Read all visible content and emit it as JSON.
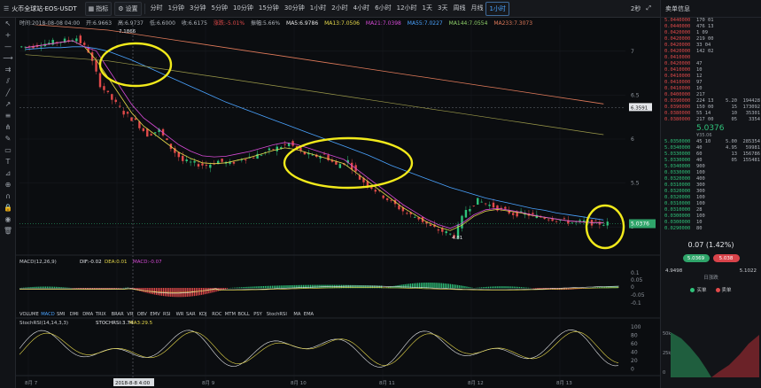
{
  "toolbar": {
    "pair_title": "火币全球站·EOS-USDT",
    "indicators_label": "指标",
    "settings_label": "设置",
    "periods": [
      "分时",
      "1分钟",
      "3分钟",
      "5分钟",
      "10分钟",
      "15分钟",
      "30分钟",
      "1小时",
      "2小时",
      "4小时",
      "6小时",
      "12小时",
      "1天",
      "3天",
      "周线",
      "月线",
      "1小时"
    ],
    "active_period": "1小时",
    "right_label": "2秒"
  },
  "infoline": {
    "time": "时间:2018-08-08 04:00",
    "open": "开:6.9663",
    "high": "高:6.9737",
    "low": "低:6.6000",
    "close": "收:6.6175",
    "change": "涨跌:-5.01%",
    "amplitude": "振幅:5.66%",
    "ma5": "MA5:6.9786",
    "ma13": "MA13:7.0506",
    "ma21": "MA21:7.0398",
    "ma55": "MA55:7.0227",
    "ma144": "MA144:7.0554",
    "ma233": "MA233:7.3073"
  },
  "price_axis": [
    "7",
    "6.5",
    "6",
    "5.5",
    "5"
  ],
  "price_tag_hover": "6.3591",
  "price_tag_current": "5.0376",
  "high_label": "7.1866",
  "low_label": "4.81",
  "macd": {
    "title": "MACD(12,26,9)",
    "dif": "DIF:-0.02",
    "dea": "DEA:0.01",
    "macd": "MACD:-0.07",
    "axis": [
      "0.1",
      "0.05",
      "0",
      "-0.05",
      "-0.1"
    ]
  },
  "indicator_tabs": [
    "VOLUME",
    "MACD",
    "SMI",
    "DMI",
    "DMA",
    "TRIX",
    "BRAR",
    "VR",
    "OBV",
    "EMV",
    "RSI",
    "WR",
    "SAR",
    "KDJ",
    "ROC",
    "MTM",
    "BOLL",
    "PSY",
    "StochRSI",
    "MA",
    "EMA"
  ],
  "stochrsi": {
    "title": "StochRSI(14,14,3,3)",
    "k": "STOCHRSI:3.74",
    "d": "MA3:29.5",
    "axis": [
      "100",
      "80",
      "60",
      "40",
      "20",
      "0"
    ]
  },
  "date_axis": [
    "8月 7",
    "2018-8-8 4:00",
    "8月 9",
    "8月 10",
    "8月 11",
    "8月 12",
    "8月 13"
  ],
  "orderbook": {
    "title": "卖单信息",
    "asks": [
      [
        "5.0440000",
        "170",
        "01",
        "",
        ""
      ],
      [
        "0.0440000",
        "476",
        "13",
        "",
        ""
      ],
      [
        "0.0420000",
        "1",
        "09",
        "",
        ""
      ],
      [
        "0.0420000",
        "219",
        "00",
        "",
        ""
      ],
      [
        "0.0420000",
        "33",
        "04",
        "",
        ""
      ],
      [
        "0.0420000",
        "142",
        "02",
        "",
        ""
      ],
      [
        "0.0410000",
        "",
        "",
        "",
        ""
      ],
      [
        "0.0420000",
        "47",
        "",
        "",
        ""
      ],
      [
        "0.0410000",
        "10",
        "",
        "",
        ""
      ],
      [
        "0.0410000",
        "12",
        "",
        "",
        ""
      ],
      [
        "0.0410000",
        "97",
        "",
        "",
        ""
      ],
      [
        "0.0410000",
        "10",
        "",
        "",
        ""
      ],
      [
        "0.0400000",
        "217",
        "",
        "",
        ""
      ],
      [
        "0.0390000",
        "224",
        "13",
        "5.20",
        "194428"
      ],
      [
        "0.0390000",
        "150",
        "00",
        "15",
        "173092"
      ],
      [
        "0.0380000",
        "55",
        "14",
        "10",
        "35301"
      ],
      [
        "0.0380000",
        "217",
        "00",
        "05",
        "3354"
      ]
    ],
    "mid_price": "5.0376",
    "mid_sub": "¥35.06",
    "bids": [
      [
        "5.0350000",
        "45",
        "10",
        "5.00",
        "285354"
      ],
      [
        "5.0340000",
        "40",
        "",
        "4.95",
        "59981"
      ],
      [
        "5.0330000",
        "60",
        "",
        "13",
        "156786"
      ],
      [
        "5.0330000",
        "40",
        "",
        "05",
        "155481"
      ],
      [
        "5.0340000",
        "900",
        "",
        "",
        ""
      ],
      [
        "0.0330000",
        "100",
        "",
        "",
        ""
      ],
      [
        "0.0320000",
        "400",
        "",
        "",
        ""
      ],
      [
        "0.0310000",
        "300",
        "",
        "",
        ""
      ],
      [
        "0.0320000",
        "300",
        "",
        "",
        ""
      ],
      [
        "0.0320000",
        "100",
        "",
        "",
        ""
      ],
      [
        "0.0310000",
        "100",
        "",
        "",
        ""
      ],
      [
        "0.0310000",
        "28",
        "",
        "",
        ""
      ],
      [
        "0.0300000",
        "100",
        "",
        "",
        ""
      ],
      [
        "0.0300000",
        "10",
        "",
        "",
        ""
      ],
      [
        "0.0290000",
        "80",
        "",
        "",
        ""
      ]
    ],
    "change_text": "0.07 (1.42%)",
    "buy_pill": "5.0369",
    "sell_pill": "5.038",
    "range_low": "4.9498",
    "range_label": "日涨跌",
    "range_high": "5.1022",
    "legend_buy": "买单",
    "legend_sell": "卖单",
    "depth_axis": [
      "50k",
      "25k",
      "0"
    ]
  },
  "colors": {
    "up": "#2fc27a",
    "down": "#e24a4a",
    "highlight": "#f2ea1b"
  },
  "chart_data": {
    "type": "line",
    "title": "",
    "xlabel": "",
    "ylabel": "",
    "ylim": [
      4.7,
      7.3
    ],
    "grid": true,
    "series": [
      {
        "name": "close",
        "values": [
          7.05,
          7.08,
          7.1,
          7.12,
          7.15,
          7.0,
          6.62,
          6.45,
          6.3,
          6.2,
          6.05,
          6.1,
          5.9,
          5.75,
          5.72,
          5.7,
          5.75,
          5.72,
          5.78,
          5.8,
          5.85,
          5.9,
          5.95,
          5.85,
          5.8,
          5.82,
          5.7,
          5.75,
          5.55,
          5.45,
          5.35,
          5.25,
          5.15,
          5.1,
          5.0,
          4.95,
          4.9,
          5.2,
          5.3,
          5.25,
          5.2,
          5.15,
          5.15,
          5.12,
          5.1,
          5.08,
          5.05,
          5.06,
          5.04,
          5.04
        ]
      },
      {
        "name": "MA5",
        "values": [
          7.04,
          7.06,
          7.08,
          7.1,
          7.12,
          7.05,
          6.9,
          6.7,
          6.5,
          6.3,
          6.15,
          6.05,
          5.95,
          5.85,
          5.78,
          5.73,
          5.72,
          5.73,
          5.76,
          5.79,
          5.83,
          5.87,
          5.9,
          5.88,
          5.84,
          5.8,
          5.76,
          5.72,
          5.62,
          5.52,
          5.42,
          5.32,
          5.22,
          5.14,
          5.06,
          5.0,
          4.96,
          5.02,
          5.12,
          5.18,
          5.2,
          5.18,
          5.16,
          5.13,
          5.11,
          5.09,
          5.07,
          5.06,
          5.05,
          5.05
        ]
      },
      {
        "name": "MA55",
        "values": [
          7.02,
          7.03,
          7.04,
          7.04,
          7.05,
          7.05,
          7.03,
          7.0,
          6.95,
          6.9,
          6.84,
          6.78,
          6.72,
          6.66,
          6.6,
          6.54,
          6.48,
          6.42,
          6.37,
          6.32,
          6.27,
          6.22,
          6.17,
          6.12,
          6.07,
          6.02,
          5.97,
          5.92,
          5.87,
          5.82,
          5.76,
          5.7,
          5.65,
          5.6,
          5.55,
          5.5,
          5.45,
          5.41,
          5.37,
          5.33,
          5.3,
          5.27,
          5.24,
          5.21,
          5.19,
          5.16,
          5.14,
          5.12,
          5.1,
          5.08
        ]
      },
      {
        "name": "MA233",
        "values": [
          7.31,
          7.3,
          7.29,
          7.28,
          7.27,
          7.26,
          7.25,
          7.24,
          7.22,
          7.2,
          7.18,
          7.16,
          7.14,
          7.12,
          7.1,
          7.08,
          7.06,
          7.04,
          7.02,
          7.0,
          6.98,
          6.96,
          6.94,
          6.92,
          6.9,
          6.88,
          6.86,
          6.84,
          6.82,
          6.8,
          6.78,
          6.76,
          6.74,
          6.72,
          6.7,
          6.68,
          6.66,
          6.64,
          6.62,
          6.6,
          6.58,
          6.56,
          6.54,
          6.52,
          6.5,
          6.48,
          6.46,
          6.44,
          6.42,
          6.4
        ]
      }
    ]
  }
}
